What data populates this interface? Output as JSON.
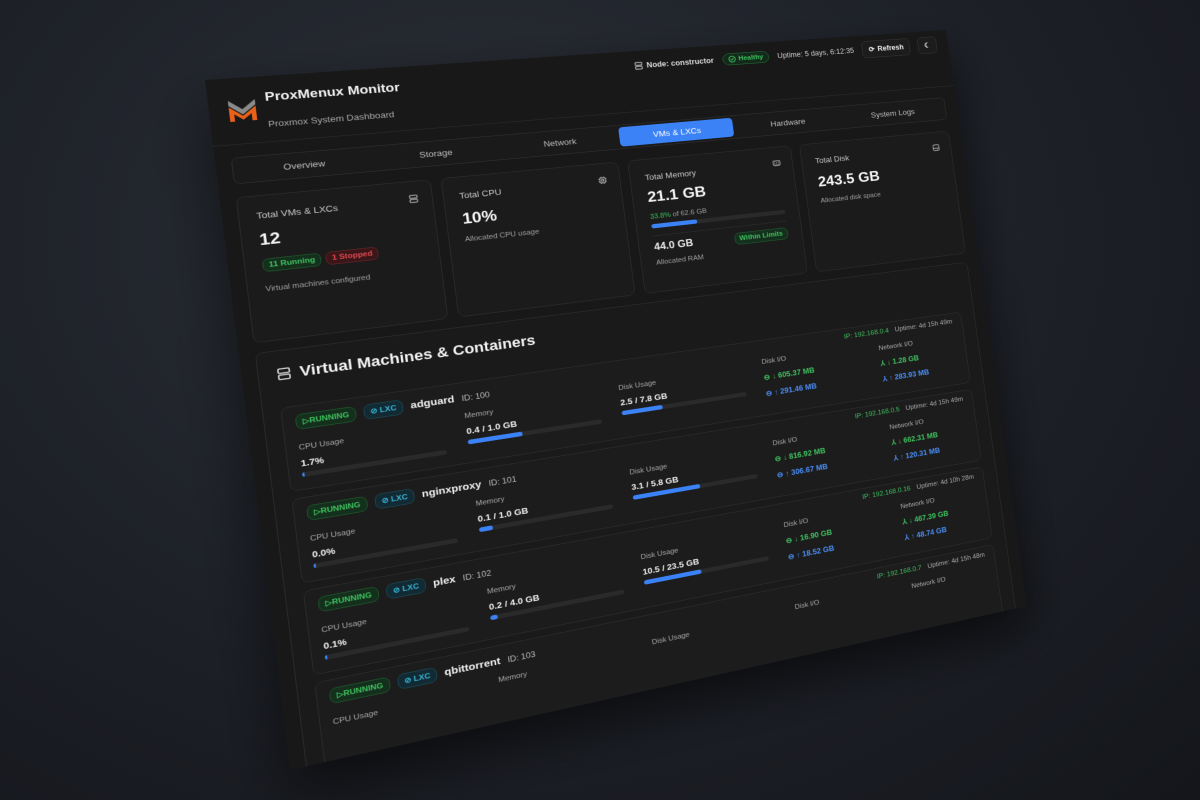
{
  "header": {
    "title": "ProxMenux Monitor",
    "subtitle": "Proxmox System Dashboard",
    "node": "Node: constructor",
    "health": "Healthy",
    "uptime": "Uptime: 5 days, 6:12:35",
    "refresh": "Refresh"
  },
  "tabs": [
    {
      "label": "Overview"
    },
    {
      "label": "Storage"
    },
    {
      "label": "Network"
    },
    {
      "label": "VMs & LXCs",
      "active": true
    },
    {
      "label": "Hardware"
    },
    {
      "label": "System Logs"
    }
  ],
  "cards": {
    "vms": {
      "label": "Total VMs & LXCs",
      "value": "12",
      "running": "11 Running",
      "stopped": "1 Stopped",
      "sub": "Virtual machines configured"
    },
    "cpu": {
      "label": "Total CPU",
      "value": "10%",
      "sub": "Allocated CPU usage"
    },
    "memory": {
      "label": "Total Memory",
      "value": "21.1 GB",
      "pct": "33.8%",
      "of": " of 62.6 GB",
      "fraction": 0.338,
      "allocated": "44.0 GB",
      "allocated_label": "Allocated RAM",
      "badge": "Within Limits"
    },
    "disk": {
      "label": "Total Disk",
      "value": "243.5 GB",
      "sub": "Allocated disk space"
    }
  },
  "section": {
    "title": "Virtual Machines & Containers"
  },
  "labels": {
    "cpu": "CPU Usage",
    "memory": "Memory",
    "disk": "Disk Usage",
    "disk_io": "Disk I/O",
    "net_io": "Network I/O"
  },
  "colors": {
    "accent": "#3b82f6",
    "running": "#3fc25f",
    "stopped": "#e0484f",
    "lxc": "#37b5d6"
  },
  "vms": [
    {
      "status": "RUNNING",
      "type": "LXC",
      "name": "adguard",
      "id": "ID: 100",
      "cpu": "1.7%",
      "cpu_frac": 0.017,
      "memory": "0.4 / 1.0 GB",
      "mem_frac": 0.4,
      "disk": "2.5 / 7.8 GB",
      "disk_frac": 0.32,
      "disk_read": "↓ 605.37 MB",
      "disk_write": "↑ 291.46 MB",
      "net_in": "↓ 1.28 GB",
      "net_out": "↑ 283.93 MB",
      "ip": "IP: 192.168.0.4",
      "uptime": "Uptime: 4d 15h 49m"
    },
    {
      "status": "RUNNING",
      "type": "LXC",
      "name": "nginxproxy",
      "id": "ID: 101",
      "cpu": "0.0%",
      "cpu_frac": 0,
      "memory": "0.1 / 1.0 GB",
      "mem_frac": 0.1,
      "disk": "3.1 / 5.8 GB",
      "disk_frac": 0.53,
      "disk_read": "↓ 816.92 MB",
      "disk_write": "↑ 306.67 MB",
      "net_in": "↓ 662.31 MB",
      "net_out": "↑ 120.31 MB",
      "ip": "IP: 192.168.0.5",
      "uptime": "Uptime: 4d 15h 49m"
    },
    {
      "status": "RUNNING",
      "type": "LXC",
      "name": "plex",
      "id": "ID: 102",
      "cpu": "0.1%",
      "cpu_frac": 0.001,
      "memory": "0.2 / 4.0 GB",
      "mem_frac": 0.05,
      "disk": "10.5 / 23.5 GB",
      "disk_frac": 0.45,
      "disk_read": "↓ 16.90 GB",
      "disk_write": "↑ 18.52 GB",
      "net_in": "↓ 467.39 GB",
      "net_out": "↑ 48.74 GB",
      "ip": "IP: 192.168.0.16",
      "uptime": "Uptime: 4d 10h 28m"
    },
    {
      "status": "RUNNING",
      "type": "LXC",
      "name": "qbittorrent",
      "id": "ID: 103",
      "ip": "IP: 192.168.0.7",
      "uptime": "Uptime: 4d 15h 48m"
    }
  ]
}
